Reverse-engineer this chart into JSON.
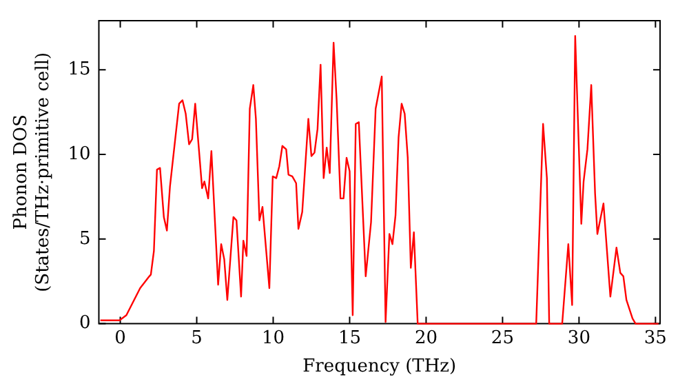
{
  "chart_data": {
    "type": "line",
    "xlabel": "Frequency (THz)",
    "ylabel": "Phonon DOS\n(States/THz·primitive cell)",
    "xlim": [
      -1.4,
      35.3
    ],
    "ylim": [
      0,
      17.9
    ],
    "xticks": [
      0,
      5,
      10,
      15,
      20,
      25,
      30,
      35
    ],
    "yticks": [
      0,
      5,
      10,
      15
    ],
    "grid": false,
    "legend": false,
    "marker": "none",
    "line_style": "solid",
    "series": [
      {
        "color": "#ff0000",
        "x": [
          -1.3,
          -0.05,
          0.4,
          1.3,
          1.9,
          2.0,
          2.2,
          2.4,
          2.6,
          2.85,
          3.05,
          3.25,
          3.85,
          4.07,
          4.28,
          4.5,
          4.7,
          4.9,
          5.35,
          5.5,
          5.75,
          5.96,
          6.4,
          6.6,
          6.8,
          7.0,
          7.4,
          7.6,
          7.9,
          8.05,
          8.26,
          8.47,
          8.7,
          8.87,
          9.1,
          9.3,
          9.75,
          9.97,
          10.2,
          10.4,
          10.6,
          10.85,
          11.0,
          11.25,
          11.5,
          11.65,
          11.9,
          12.3,
          12.5,
          12.7,
          12.9,
          13.1,
          13.3,
          13.5,
          13.7,
          13.95,
          14.15,
          14.4,
          14.6,
          14.8,
          15.0,
          15.2,
          15.4,
          15.6,
          16.05,
          16.4,
          16.7,
          17.1,
          17.35,
          17.6,
          17.8,
          18.0,
          18.2,
          18.4,
          18.6,
          18.8,
          19.0,
          19.2,
          19.45,
          27.2,
          27.65,
          27.9,
          28.05,
          28.9,
          29.3,
          29.55,
          29.75,
          30.15,
          30.3,
          30.55,
          30.8,
          31.05,
          31.2,
          31.6,
          32.05,
          32.45,
          32.7,
          32.9,
          33.1,
          33.5,
          33.7,
          35.2
        ],
        "values": [
          0.2,
          0.2,
          0.5,
          2.1,
          2.8,
          2.9,
          4.3,
          9.1,
          9.2,
          6.3,
          5.5,
          8.1,
          13.0,
          13.2,
          12.4,
          10.6,
          10.9,
          13.0,
          8.0,
          8.4,
          7.4,
          10.2,
          2.3,
          4.7,
          3.8,
          1.4,
          6.3,
          6.1,
          1.6,
          4.9,
          4.0,
          12.7,
          14.1,
          12.1,
          6.1,
          6.9,
          2.1,
          8.7,
          8.6,
          9.3,
          10.5,
          10.3,
          8.8,
          8.7,
          8.3,
          5.6,
          6.6,
          12.1,
          9.9,
          10.1,
          11.5,
          15.3,
          8.6,
          10.4,
          8.9,
          16.6,
          13.2,
          7.4,
          7.4,
          9.8,
          9.0,
          0.5,
          11.8,
          11.9,
          2.8,
          6.0,
          12.7,
          14.6,
          0.1,
          5.3,
          4.7,
          6.4,
          11.0,
          13.0,
          12.4,
          9.8,
          3.3,
          5.4,
          0,
          0,
          11.8,
          8.6,
          0,
          0,
          4.7,
          1.1,
          17.0,
          5.9,
          8.4,
          10.3,
          14.1,
          7.7,
          5.3,
          7.1,
          1.6,
          4.5,
          3.0,
          2.8,
          1.4,
          0.3,
          0,
          0
        ]
      }
    ]
  }
}
